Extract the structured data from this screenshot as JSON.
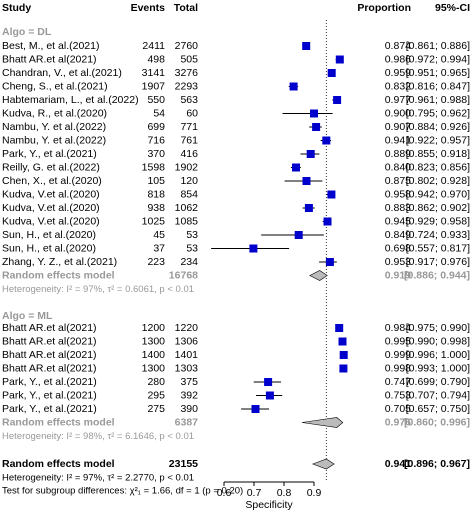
{
  "chart_data": {
    "type": "forest",
    "header": {
      "study": "Study",
      "events": "Events",
      "total": "Total",
      "proportion": "Proportion",
      "ci": "95%-CI"
    },
    "groups": [
      {
        "label": "Algo = DL",
        "rows": [
          {
            "study": "Best, M., et al.(2021)",
            "events": 2411,
            "total": 2760,
            "proportion": 0.874,
            "ci_low": 0.861,
            "ci_high": 0.886,
            "ci_label": "[0.861; 0.886]"
          },
          {
            "study": "Bhatt AR.et al(2021)",
            "events": 498,
            "total": 505,
            "proportion": 0.986,
            "ci_low": 0.972,
            "ci_high": 0.994,
            "ci_label": "[0.972; 0.994]"
          },
          {
            "study": "Chandran, V., et al.(2021)",
            "events": 3141,
            "total": 3276,
            "proportion": 0.959,
            "ci_low": 0.951,
            "ci_high": 0.965,
            "ci_label": "[0.951; 0.965]"
          },
          {
            "study": "Cheng, S., et al.(2021)",
            "events": 1907,
            "total": 2293,
            "proportion": 0.832,
            "ci_low": 0.816,
            "ci_high": 0.847,
            "ci_label": "[0.816; 0.847]"
          },
          {
            "study": "Habtemariam, L., et al.(2022)",
            "events": 550,
            "total": 563,
            "proportion": 0.977,
            "ci_low": 0.961,
            "ci_high": 0.988,
            "ci_label": "[0.961; 0.988]"
          },
          {
            "study": "Kudva, R., et al.(2020)",
            "events": 54,
            "total": 60,
            "proportion": 0.9,
            "proportion_label": "0.900",
            "ci_low": 0.795,
            "ci_high": 0.962,
            "ci_label": "[0.795; 0.962]"
          },
          {
            "study": "Nambu, Y. et al.(2022)",
            "events": 699,
            "total": 771,
            "proportion": 0.907,
            "ci_low": 0.884,
            "ci_high": 0.926,
            "ci_label": "[0.884; 0.926]"
          },
          {
            "study": "Nambu, Y. et al.(2022)",
            "events": 716,
            "total": 761,
            "proportion": 0.941,
            "ci_low": 0.922,
            "ci_high": 0.957,
            "ci_label": "[0.922; 0.957]"
          },
          {
            "study": "Park, Y., et al.(2021)",
            "events": 370,
            "total": 416,
            "proportion": 0.889,
            "ci_low": 0.855,
            "ci_high": 0.918,
            "ci_label": "[0.855; 0.918]"
          },
          {
            "study": "Reilly, G. et al.(2022)",
            "events": 1598,
            "total": 1902,
            "proportion": 0.84,
            "proportion_label": "0.840",
            "ci_low": 0.823,
            "ci_high": 0.856,
            "ci_label": "[0.823; 0.856]"
          },
          {
            "study": "Chen, X., et al.(2020)",
            "events": 105,
            "total": 120,
            "proportion": 0.875,
            "ci_low": 0.802,
            "ci_high": 0.928,
            "ci_label": "[0.802; 0.928]"
          },
          {
            "study": "Kudva, V.et al.(2020)",
            "events": 818,
            "total": 854,
            "proportion": 0.958,
            "ci_low": 0.942,
            "ci_high": 0.97,
            "ci_label": "[0.942; 0.970]"
          },
          {
            "study": "Kudva, V.et al.(2020)",
            "events": 938,
            "total": 1062,
            "proportion": 0.883,
            "ci_low": 0.862,
            "ci_high": 0.902,
            "ci_label": "[0.862; 0.902]"
          },
          {
            "study": "Kudva, V.et al.(2020)",
            "events": 1025,
            "total": 1085,
            "proportion": 0.945,
            "ci_low": 0.929,
            "ci_high": 0.958,
            "ci_label": "[0.929; 0.958]"
          },
          {
            "study": "Sun, H., et al.(2020)",
            "events": 45,
            "total": 53,
            "proportion": 0.849,
            "ci_low": 0.724,
            "ci_high": 0.933,
            "ci_label": "[0.724; 0.933]"
          },
          {
            "study": "Sun, H., et al.(2020)",
            "events": 37,
            "total": 53,
            "proportion": 0.698,
            "ci_low": 0.557,
            "ci_high": 0.817,
            "ci_label": "[0.557; 0.817]"
          },
          {
            "study": "Zhang, Y. Z., et al.(2021)",
            "events": 223,
            "total": 234,
            "proportion": 0.953,
            "ci_low": 0.917,
            "ci_high": 0.976,
            "ci_label": "[0.917; 0.976]"
          }
        ],
        "model": {
          "label": "Random effects model",
          "total": 16768,
          "proportion": 0.919,
          "ci_low": 0.886,
          "ci_high": 0.944,
          "ci_label": "[0.886; 0.944]"
        },
        "heterogeneity": "Heterogeneity: I² = 97%, τ² = 0.6061, p < 0.01"
      },
      {
        "label": "Algo = ML",
        "rows": [
          {
            "study": "Bhatt AR.et al(2021)",
            "events": 1200,
            "total": 1220,
            "proportion": 0.984,
            "ci_low": 0.975,
            "ci_high": 0.99,
            "ci_label": "[0.975; 0.990]"
          },
          {
            "study": "Bhatt AR.et al(2021)",
            "events": 1300,
            "total": 1306,
            "proportion": 0.995,
            "ci_low": 0.99,
            "ci_high": 0.998,
            "ci_label": "[0.990; 0.998]"
          },
          {
            "study": "Bhatt AR.et al(2021)",
            "events": 1400,
            "total": 1401,
            "proportion": 0.999,
            "ci_low": 0.996,
            "ci_high": 1.0,
            "ci_label": "[0.996; 1.000]"
          },
          {
            "study": "Bhatt AR.et al(2021)",
            "events": 1300,
            "total": 1303,
            "proportion": 0.998,
            "ci_low": 0.993,
            "ci_high": 1.0,
            "ci_label": "[0.993; 1.000]"
          },
          {
            "study": "Park, Y., et al.(2021)",
            "events": 280,
            "total": 375,
            "proportion": 0.747,
            "ci_low": 0.699,
            "ci_high": 0.79,
            "ci_label": "[0.699; 0.790]"
          },
          {
            "study": "Park, Y., et al.(2021)",
            "events": 295,
            "total": 392,
            "proportion": 0.753,
            "ci_low": 0.707,
            "ci_high": 0.794,
            "ci_label": "[0.707; 0.794]"
          },
          {
            "study": "Park, Y., et al.(2021)",
            "events": 275,
            "total": 390,
            "proportion": 0.705,
            "ci_low": 0.657,
            "ci_high": 0.75,
            "ci_label": "[0.657; 0.750]"
          }
        ],
        "model": {
          "label": "Random effects model",
          "total": 6387,
          "proportion": 0.976,
          "ci_low": 0.86,
          "ci_high": 0.996,
          "ci_label": "[0.860; 0.996]"
        },
        "heterogeneity": "Heterogeneity: I² = 98%, τ² = 6.1646, p < 0.01"
      }
    ],
    "overall": {
      "label": "Random effects model",
      "total": 23155,
      "proportion": 0.941,
      "ci_low": 0.896,
      "ci_high": 0.967,
      "ci_label": "[0.896; 0.967]"
    },
    "heterogeneity": "Heterogeneity: I² = 97%, τ² = 2.2770, p < 0.01",
    "subgroup_test": "Test for subgroup differences: χ²₁ = 1.66, df = 1 (p = 0.20)",
    "xlabel": "Specificity",
    "xlim": [
      0.6,
      0.9
    ],
    "xticks": [
      0.6,
      0.7,
      0.8,
      0.9
    ],
    "color": "#0000cc"
  }
}
